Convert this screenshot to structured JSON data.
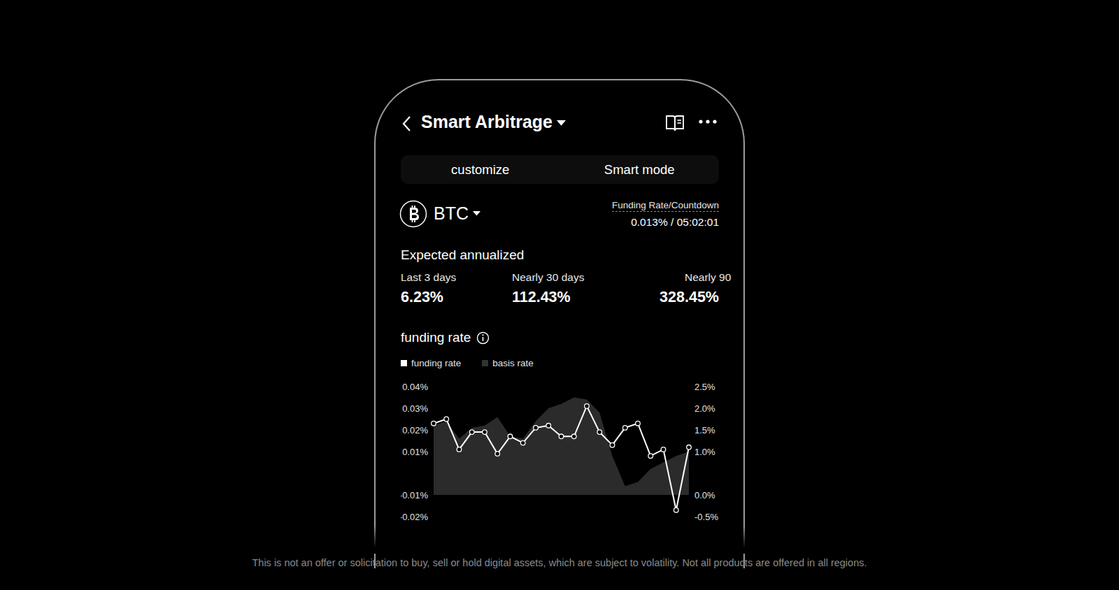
{
  "header": {
    "title": "Smart Arbitrage"
  },
  "tabs": [
    "customize",
    "Smart mode"
  ],
  "coin": "BTC",
  "funding_countdown": {
    "label": "Funding Rate/Countdown",
    "value": "0.013% / 05:02:01"
  },
  "expected_annualized": {
    "title": "Expected annualized",
    "items": [
      {
        "label": "Last 3 days",
        "value": "6.23%"
      },
      {
        "label": "Nearly 30 days",
        "value": "112.43%"
      },
      {
        "label": "Nearly 90",
        "value": "328.45%"
      }
    ]
  },
  "chart_data": {
    "type": "line",
    "title": "funding rate",
    "categories": [
      null,
      null,
      null,
      null,
      null,
      null,
      null,
      null,
      null,
      null,
      null,
      null,
      null,
      null,
      null,
      null,
      null,
      null,
      null,
      null,
      null
    ],
    "series": [
      {
        "name": "funding rate",
        "type": "line",
        "color": "#ffffff",
        "marker": "circle",
        "values": [
          0.023,
          0.025,
          0.011,
          0.019,
          0.019,
          0.009,
          0.017,
          0.014,
          0.021,
          0.022,
          0.017,
          0.017,
          0.031,
          0.019,
          0.013,
          0.021,
          0.023,
          0.008,
          0.011,
          -0.017,
          0.012
        ]
      },
      {
        "name": "basis rate",
        "type": "area",
        "axis": "y2",
        "color": "#333333",
        "values": [
          1.6,
          1.7,
          1.3,
          1.55,
          1.6,
          1.8,
          1.35,
          1.3,
          1.7,
          2.0,
          2.1,
          2.25,
          2.2,
          1.9,
          0.9,
          0.2,
          0.3,
          0.6,
          0.75,
          0.9,
          1.0
        ]
      }
    ],
    "ylim": [
      -0.02,
      0.04
    ],
    "yticks": [
      {
        "value": 0.04,
        "label": "0.04%"
      },
      {
        "value": 0.03,
        "label": "0.03%"
      },
      {
        "value": 0.02,
        "label": "0.02%"
      },
      {
        "value": 0.01,
        "label": "0.01%"
      },
      {
        "value": -0.01,
        "label": "-0.01%"
      },
      {
        "value": -0.02,
        "label": "-0.02%"
      }
    ],
    "y2lim": [
      -0.5,
      2.5
    ],
    "y2ticks": [
      {
        "value": 2.5,
        "label": "2.5%"
      },
      {
        "value": 2.0,
        "label": "2.0%"
      },
      {
        "value": 1.5,
        "label": "1.5%"
      },
      {
        "value": 1.0,
        "label": "1.0%"
      },
      {
        "value": 0.0,
        "label": "0.0%"
      },
      {
        "value": -0.5,
        "label": "-0.5%"
      }
    ],
    "grid": false,
    "legend": "top left",
    "tick_labels": "y"
  },
  "disclaimer": "This is not an offer or solicitation to buy, sell or hold digital assets, which are subject to volatility. Not all products are offered in all regions."
}
